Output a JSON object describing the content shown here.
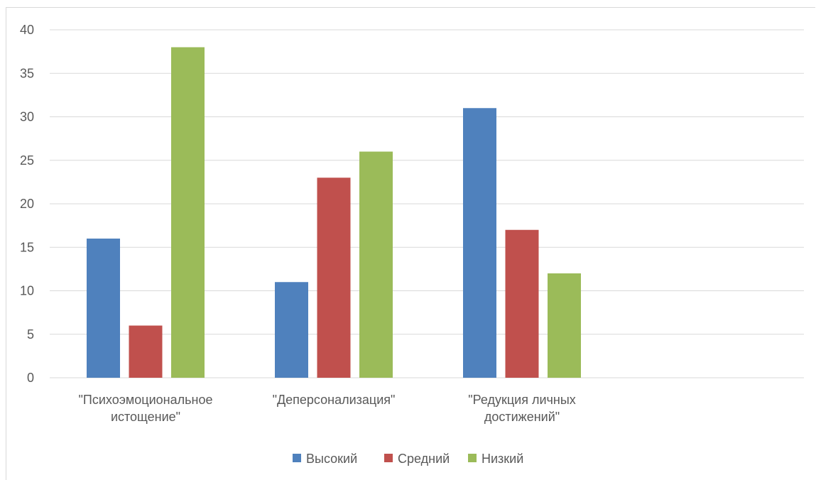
{
  "chart_data": {
    "type": "bar",
    "title": "",
    "xlabel": "",
    "ylabel": "",
    "categories": [
      [
        "\"Психоэмоциональное",
        "истощение\""
      ],
      [
        "\"Деперсонализация\""
      ],
      [
        "\"Редукция личных",
        "достижений\""
      ]
    ],
    "series": [
      {
        "name": "Высокий",
        "values": [
          16,
          11,
          31
        ],
        "color": "#4f81bd"
      },
      {
        "name": "Средний",
        "values": [
          6,
          23,
          17
        ],
        "color": "#c0504d"
      },
      {
        "name": "Низкий",
        "values": [
          38,
          26,
          12
        ],
        "color": "#9bbb59"
      }
    ],
    "ylim": [
      0,
      40
    ],
    "yticks": [
      0,
      5,
      10,
      15,
      20,
      25,
      30,
      35,
      40
    ],
    "grid": true,
    "legend_position": "bottom"
  }
}
